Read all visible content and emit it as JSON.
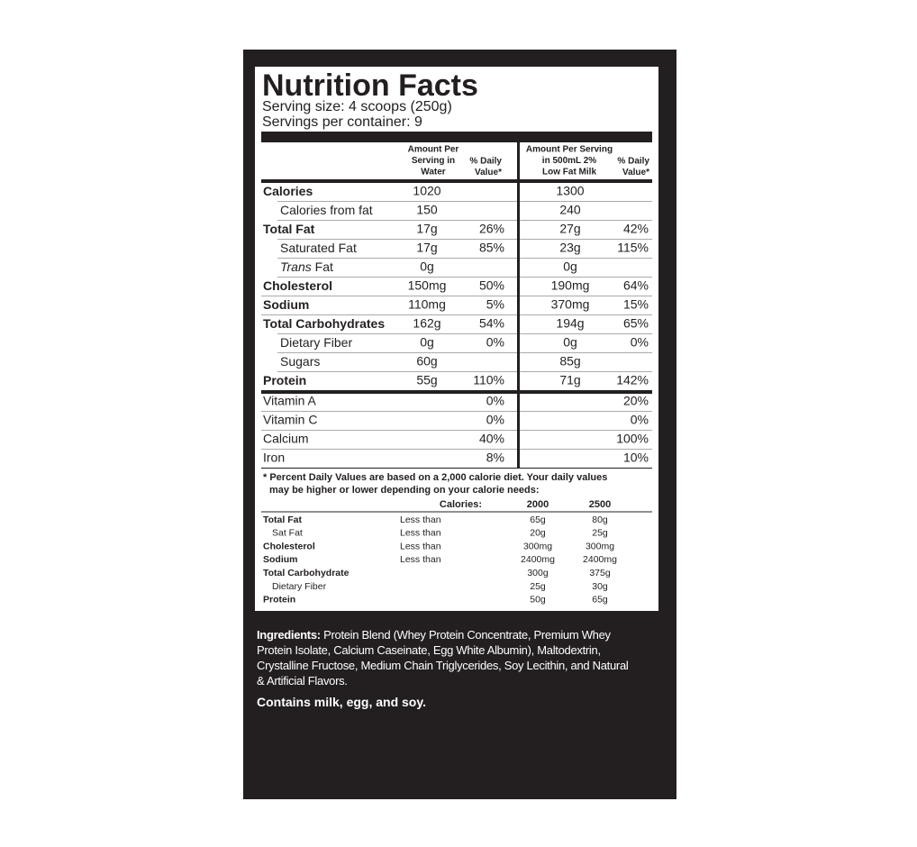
{
  "header": {
    "title": "Nutrition Facts",
    "serving_size": "Serving size: 4 scoops  (250g)",
    "servings_per_container": "Servings per container: 9"
  },
  "columns": {
    "water_amount": [
      "Amount Per",
      "Serving in",
      "Water"
    ],
    "water_dv": [
      "% Daily",
      "Value*"
    ],
    "milk_amount": [
      "Amount Per Serving",
      "in 500mL 2%",
      "Low Fat Milk"
    ],
    "milk_dv": [
      "% Daily",
      "Value*"
    ]
  },
  "nutrients": [
    {
      "label": "Calories",
      "bold": true,
      "water": "1020",
      "milk": "1300"
    },
    {
      "label": "Calories from fat",
      "indent": true,
      "water": "150",
      "milk": "240"
    },
    {
      "label": "Total Fat",
      "bold": true,
      "water": "17g",
      "water_dv": "26%",
      "milk": "27g",
      "milk_dv": "42%"
    },
    {
      "label": "Saturated Fat",
      "indent": true,
      "water": "17g",
      "water_dv": "85%",
      "milk": "23g",
      "milk_dv": "115%"
    },
    {
      "italic_prefix": "Trans",
      "label": "Fat",
      "indent": true,
      "water": "0g",
      "milk": "0g"
    },
    {
      "label": "Cholesterol",
      "bold": true,
      "water": "150mg",
      "water_dv": "50%",
      "milk": "190mg",
      "milk_dv": "64%"
    },
    {
      "label": "Sodium",
      "bold": true,
      "water": "110mg",
      "water_dv": "5%",
      "milk": "370mg",
      "milk_dv": "15%"
    },
    {
      "label": "Total Carbohydrates",
      "bold": true,
      "water": "162g",
      "water_dv": "54%",
      "milk": "194g",
      "milk_dv": "65%"
    },
    {
      "label": "Dietary Fiber",
      "indent": true,
      "water": "0g",
      "water_dv": "0%",
      "milk": "0g",
      "milk_dv": "0%"
    },
    {
      "label": "Sugars",
      "indent": true,
      "water": "60g",
      "milk": "85g"
    },
    {
      "label": "Protein",
      "bold": true,
      "water": "55g",
      "water_dv": "110%",
      "milk": "71g",
      "milk_dv": "142%"
    }
  ],
  "vitamins": [
    {
      "label": "Vitamin A",
      "water_dv": "0%",
      "milk_dv": "20%"
    },
    {
      "label": "Vitamin C",
      "water_dv": "0%",
      "milk_dv": "0%"
    },
    {
      "label": "Calcium",
      "water_dv": "40%",
      "milk_dv": "100%"
    },
    {
      "label": "Iron",
      "water_dv": "8%",
      "milk_dv": "10%"
    }
  ],
  "footnote": [
    "* Percent Daily Values are based on a 2,000 calorie diet. Your daily values",
    "may be higher or lower depending on your calorie needs:"
  ],
  "daily_values": {
    "header": {
      "label": "Calories:",
      "c1": "2000",
      "c2": "2500"
    },
    "rows": [
      {
        "name": "Total Fat",
        "limit": "Less than",
        "c1": "65g",
        "c2": "80g"
      },
      {
        "name": "Sat Fat",
        "sub": true,
        "limit": "Less than",
        "c1": "20g",
        "c2": "25g"
      },
      {
        "name": "Cholesterol",
        "limit": "Less than",
        "c1": "300mg",
        "c2": "300mg"
      },
      {
        "name": "Sodium",
        "limit": "Less than",
        "c1": "2400mg",
        "c2": "2400mg"
      },
      {
        "name": "Total Carbohydrate",
        "c1": "300g",
        "c2": "375g"
      },
      {
        "name": "Dietary Fiber",
        "sub": true,
        "c1": "25g",
        "c2": "30g"
      },
      {
        "name": "Protein",
        "c1": "50g",
        "c2": "65g"
      }
    ]
  },
  "ingredients": {
    "label": "Ingredients:",
    "text": "Protein Blend (Whey Protein Concentrate, Premium Whey Protein Isolate, Calcium Caseinate, Egg White Albumin), Maltodextrin, Crystalline Fructose, Medium Chain Triglycerides,  Soy Lecithin, and Natural & Artificial Flavors."
  },
  "allergens": "Contains milk, egg, and soy."
}
